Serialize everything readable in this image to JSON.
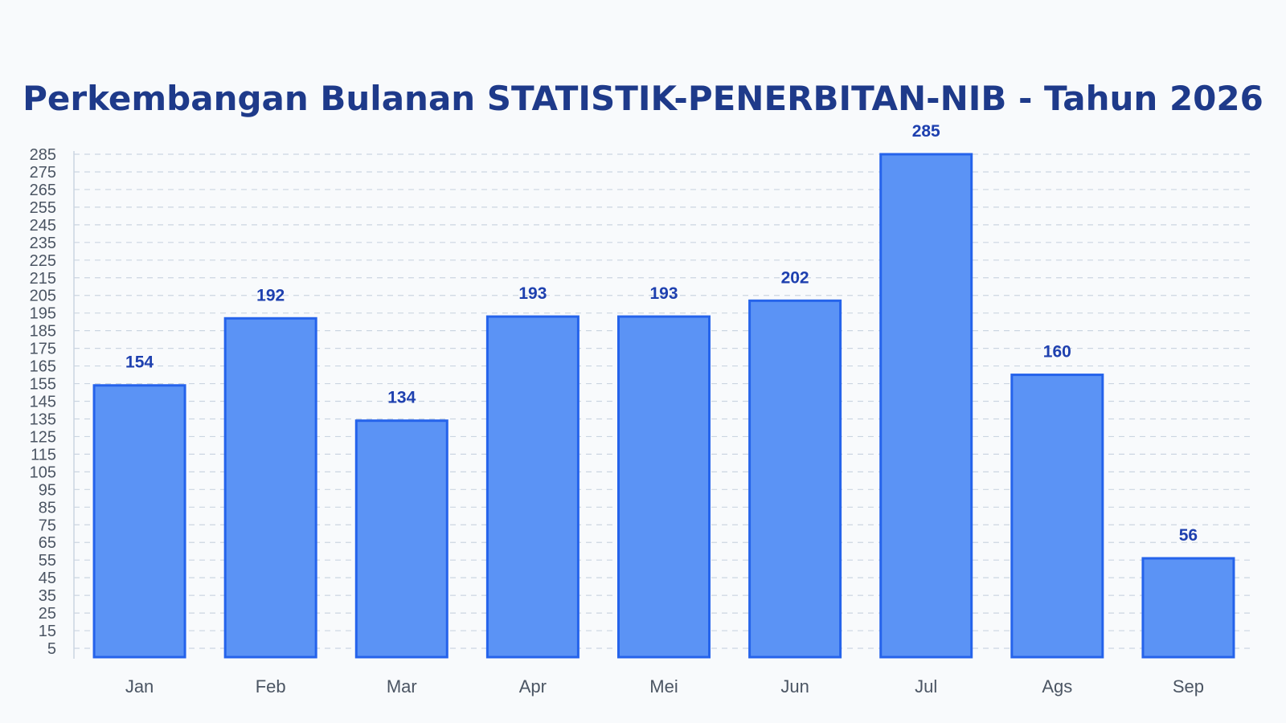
{
  "chart_data": {
    "type": "bar",
    "title": "Perkembangan Bulanan STATISTIK-PENERBITAN-NIB - Tahun 2026",
    "categories": [
      "Jan",
      "Feb",
      "Mar",
      "Apr",
      "Mei",
      "Jun",
      "Jul",
      "Ags",
      "Sep"
    ],
    "values": [
      154,
      192,
      134,
      193,
      193,
      202,
      285,
      160,
      56
    ],
    "yticks": [
      5,
      15,
      25,
      35,
      45,
      55,
      65,
      75,
      85,
      95,
      105,
      115,
      125,
      135,
      145,
      155,
      165,
      175,
      185,
      195,
      205,
      215,
      225,
      235,
      245,
      255,
      265,
      275,
      285
    ],
    "ylim": [
      0,
      285
    ],
    "xlabel": "",
    "ylabel": "",
    "grid": true,
    "data_labels": true,
    "colors": {
      "bar_fill": "#5b93f5",
      "bar_stroke": "#2563eb",
      "value_label": "#1e40af",
      "title": "#1e3a8a",
      "tick_label": "#4b5563",
      "grid": "#cbd5e1",
      "axis": "#cbd5e1"
    }
  }
}
